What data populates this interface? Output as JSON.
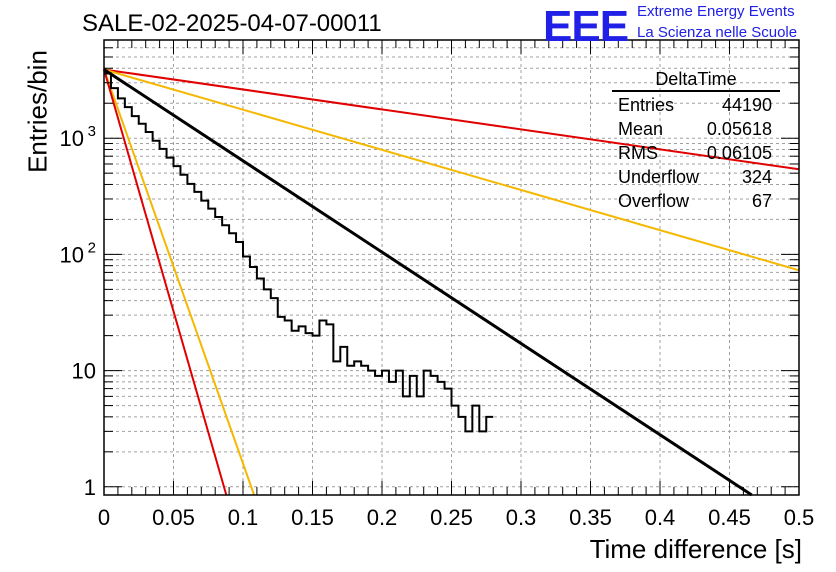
{
  "header": {
    "title": "SALE-02-2025-04-07-00011",
    "logo_text": "EEE",
    "logo_line1": "Extreme Energy Events",
    "logo_line2": "La Scienza nelle Scuole"
  },
  "stats": {
    "title": "DeltaTime",
    "rows": [
      {
        "label": "Entries",
        "value": "44190"
      },
      {
        "label": "Mean",
        "value": "0.05618"
      },
      {
        "label": "RMS",
        "value": "0.06105"
      },
      {
        "label": "Underflow",
        "value": "324"
      },
      {
        "label": "Overflow",
        "value": "67"
      }
    ]
  },
  "colors": {
    "histogram": "#000000",
    "fit": "#000000",
    "red": "#e00000",
    "orange": "#f5b800",
    "grid": "#a0a0a0"
  },
  "chart_data": {
    "type": "histogram",
    "title": "SALE-02-2025-04-07-00011",
    "xlabel": "Time difference [s]",
    "ylabel": "Entries/bin",
    "xscale": "linear",
    "yscale": "log",
    "xlim": [
      0,
      0.5
    ],
    "ylim": [
      0.85,
      7000
    ],
    "grid": true,
    "x_ticks": [
      "0",
      "0.05",
      "0.1",
      "0.15",
      "0.2",
      "0.25",
      "0.3",
      "0.35",
      "0.4",
      "0.45",
      "0.5"
    ],
    "y_ticks": [
      {
        "value": 1,
        "label": "1"
      },
      {
        "value": 10,
        "label": "10"
      },
      {
        "value": 100,
        "label": "10",
        "exp": "2"
      },
      {
        "value": 1000,
        "label": "10",
        "exp": "3"
      }
    ],
    "bin_width": 0.005,
    "counts": [
      3600,
      2700,
      2200,
      1850,
      1550,
      1330,
      1130,
      950,
      810,
      680,
      575,
      485,
      405,
      345,
      290,
      248,
      210,
      178,
      152,
      128,
      96,
      78,
      62,
      50,
      42,
      29,
      27,
      22,
      24,
      21,
      20,
      27,
      25,
      12,
      16,
      11,
      12,
      11,
      10,
      9,
      10,
      8,
      10,
      6,
      9,
      6,
      10,
      9,
      8,
      7,
      5,
      4,
      3,
      5,
      3,
      4
    ],
    "fit_line": {
      "name": "fit",
      "color": "#000000",
      "x": [
        0,
        0.466
      ],
      "y": [
        3900,
        0.85
      ]
    },
    "reference_lines": [
      {
        "name": "red-upper",
        "color": "#e00000",
        "x": [
          0,
          0.5
        ],
        "y": [
          3900,
          540
        ]
      },
      {
        "name": "orange-upper",
        "color": "#f5b800",
        "x": [
          0,
          0.5
        ],
        "y": [
          3900,
          73
        ]
      },
      {
        "name": "orange-lower",
        "color": "#f5b800",
        "x": [
          0,
          0.108
        ],
        "y": [
          3900,
          0.85
        ]
      },
      {
        "name": "red-lower",
        "color": "#e00000",
        "x": [
          0,
          0.088
        ],
        "y": [
          3900,
          0.85
        ]
      }
    ]
  }
}
